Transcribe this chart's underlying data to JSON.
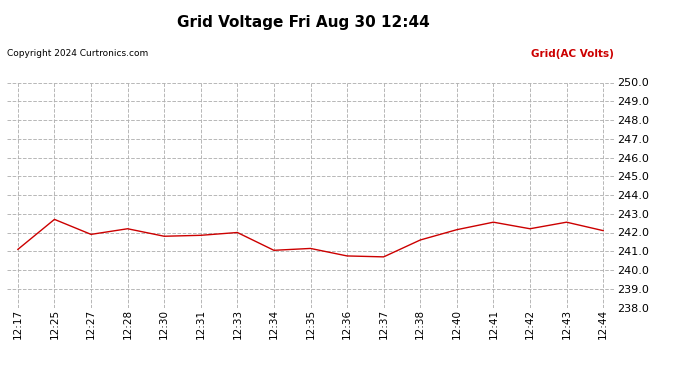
{
  "title": "Grid Voltage Fri Aug 30 12:44",
  "copyright": "Copyright 2024 Curtronics.com",
  "legend_label": "Grid(AC Volts)",
  "legend_color": "#cc0000",
  "line_color": "#cc0000",
  "background_color": "#ffffff",
  "grid_color": "#b0b0b0",
  "ylim": [
    238.0,
    250.0
  ],
  "yticks": [
    238.0,
    239.0,
    240.0,
    241.0,
    242.0,
    243.0,
    244.0,
    245.0,
    246.0,
    247.0,
    248.0,
    249.0,
    250.0
  ],
  "xtick_labels": [
    "12:17",
    "12:25",
    "12:27",
    "12:28",
    "12:30",
    "12:31",
    "12:33",
    "12:34",
    "12:35",
    "12:36",
    "12:37",
    "12:38",
    "12:40",
    "12:41",
    "12:42",
    "12:43",
    "12:44"
  ],
  "x_values": [
    0,
    1,
    2,
    3,
    4,
    5,
    6,
    7,
    8,
    9,
    10,
    11,
    12,
    13,
    14,
    15,
    16
  ],
  "y_values": [
    241.1,
    242.7,
    241.9,
    242.2,
    241.8,
    241.85,
    242.0,
    241.05,
    241.15,
    240.75,
    240.7,
    241.6,
    242.15,
    242.55,
    242.2,
    242.55,
    242.1
  ]
}
